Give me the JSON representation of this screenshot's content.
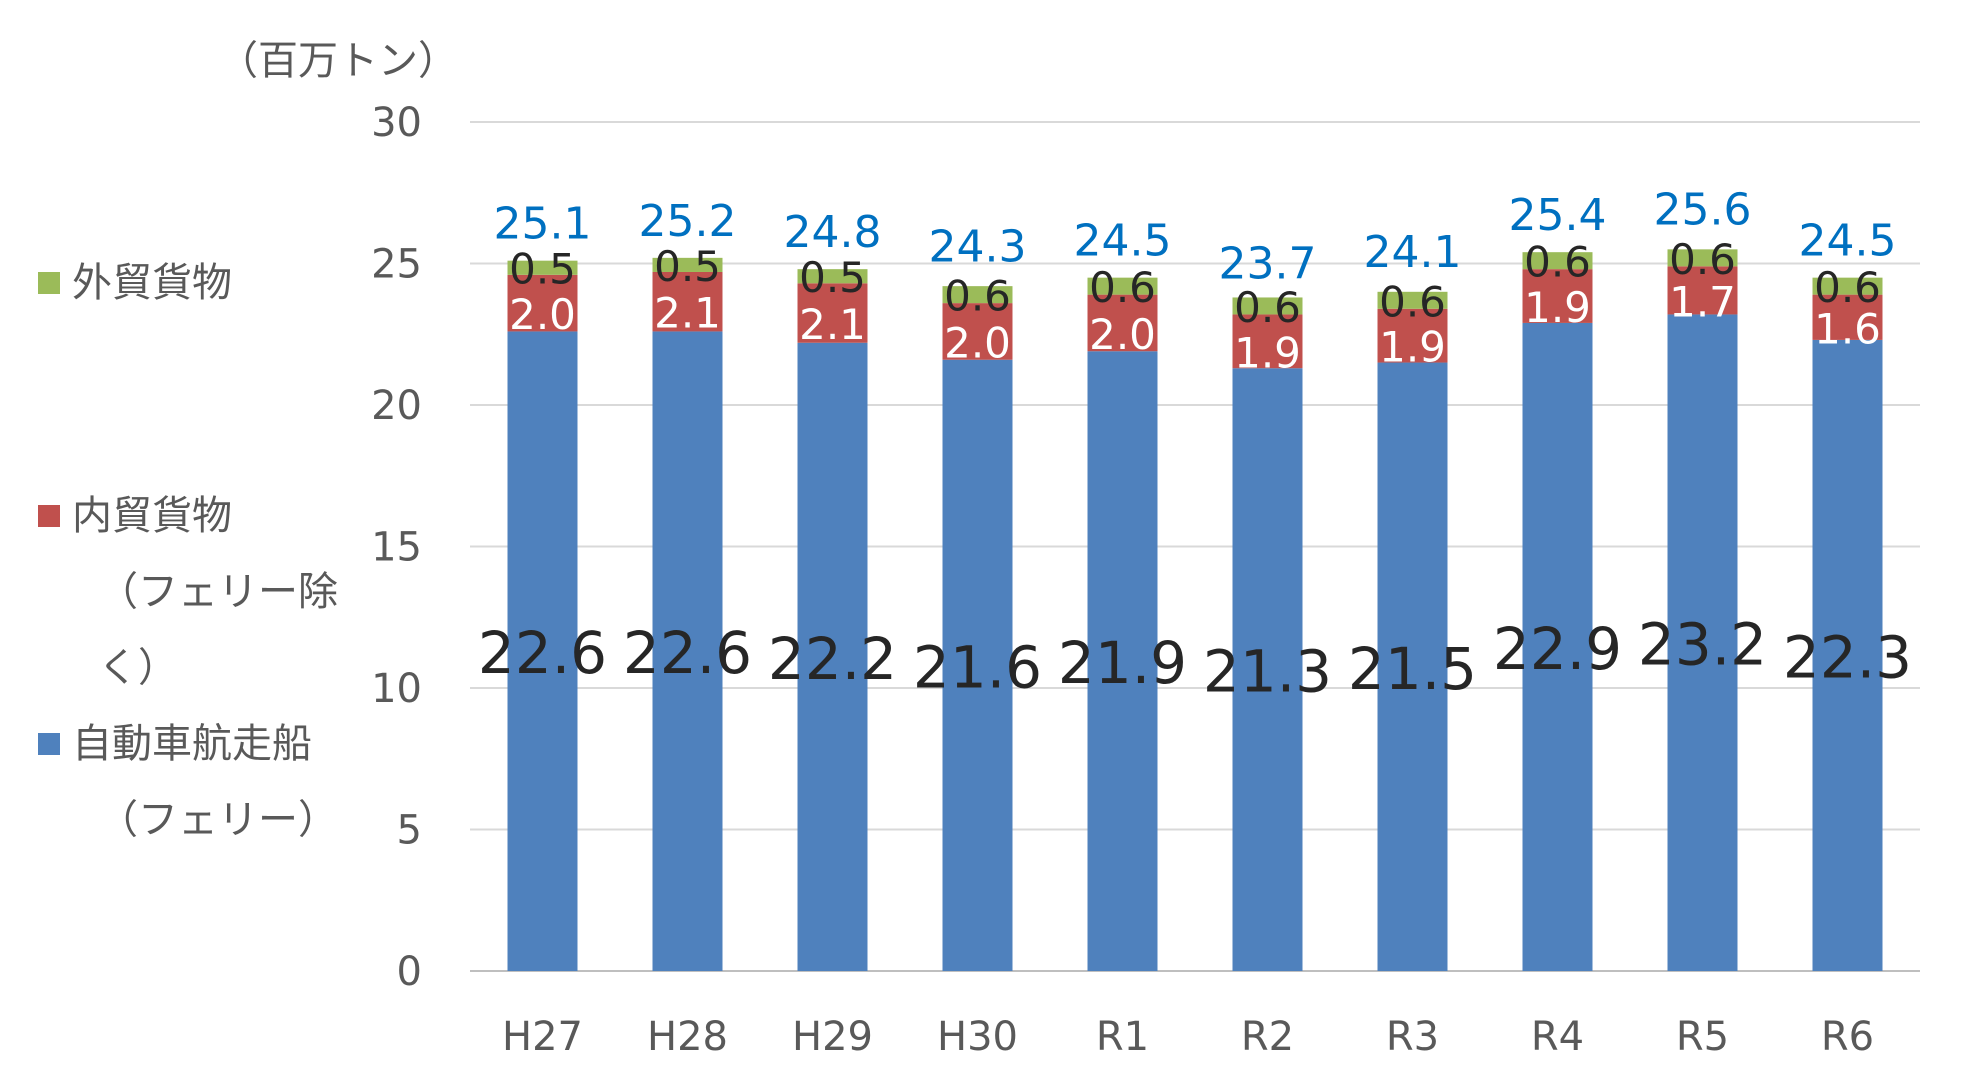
{
  "chart_data": {
    "type": "bar",
    "stacked": true,
    "unit_label": "（百万トン）",
    "categories": [
      "H27",
      "H28",
      "H29",
      "H30",
      "R1",
      "R2",
      "R3",
      "R4",
      "R5",
      "R6"
    ],
    "series": [
      {
        "name": "自動車航走船（フェリー）",
        "legend_lines": [
          "自動車航走船",
          "（フェリー）"
        ],
        "color": "#4f81bd",
        "values": [
          22.6,
          22.6,
          22.2,
          21.6,
          21.9,
          21.3,
          21.5,
          22.9,
          23.2,
          22.3
        ],
        "value_labels": [
          "22.6",
          "22.6",
          "22.2",
          "21.6",
          "21.9",
          "21.3",
          "21.5",
          "22.9",
          "23.2",
          "22.3"
        ]
      },
      {
        "name": "内貿貨物（フェリー除く）",
        "legend_lines": [
          "内貿貨物",
          "（フェリー除",
          "く）"
        ],
        "color": "#c0504d",
        "values": [
          2.0,
          2.1,
          2.1,
          2.0,
          2.0,
          1.9,
          1.9,
          1.9,
          1.7,
          1.6
        ],
        "value_labels": [
          "2.0",
          "2.1",
          "2.1",
          "2.0",
          "2.0",
          "1.9",
          "1.9",
          "1.9",
          "1.7",
          "1.6"
        ]
      },
      {
        "name": "外貿貨物",
        "legend_lines": [
          "外貿貨物"
        ],
        "color": "#9bbb59",
        "values": [
          0.5,
          0.5,
          0.5,
          0.6,
          0.6,
          0.6,
          0.6,
          0.6,
          0.6,
          0.6
        ],
        "value_labels": [
          "0.5",
          "0.5",
          "0.5",
          "0.6",
          "0.6",
          "0.6",
          "0.6",
          "0.6",
          "0.6",
          "0.6"
        ]
      }
    ],
    "totals": [
      25.1,
      25.2,
      24.8,
      24.3,
      24.5,
      23.7,
      24.1,
      25.4,
      25.6,
      24.5
    ],
    "total_labels": [
      "25.1",
      "25.2",
      "24.8",
      "24.3",
      "24.5",
      "23.7",
      "24.1",
      "25.4",
      "25.6",
      "24.5"
    ],
    "total_label_color": "#0070c0",
    "ylim": [
      0,
      30
    ],
    "yticks": [
      0,
      5,
      10,
      15,
      20,
      25,
      30
    ],
    "ytick_labels": [
      "0",
      "5",
      "10",
      "15",
      "20",
      "25",
      "30"
    ],
    "grid": true,
    "legend_position": "left"
  }
}
